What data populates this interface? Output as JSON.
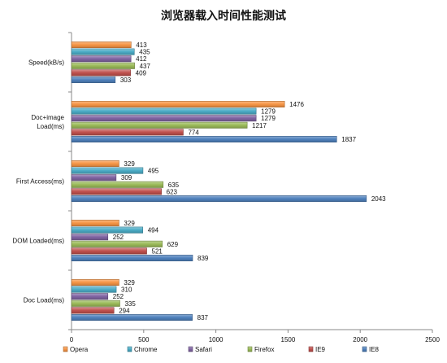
{
  "chart_data": {
    "type": "bar",
    "orientation": "horizontal",
    "title": "浏览器载入时间性能测试",
    "categories": [
      "Speed(kB/s)",
      "Doc+image Load(ms)",
      "First Access(ms)",
      "DOM Loaded(ms)",
      "Doc Load(ms)"
    ],
    "category_lines": [
      [
        "Speed(kB/s)"
      ],
      [
        "Doc+image",
        "Load(ms)"
      ],
      [
        "First Access(ms)"
      ],
      [
        "DOM Loaded(ms)"
      ],
      [
        "Doc Load(ms)"
      ]
    ],
    "series": [
      {
        "name": "Opera",
        "color": "#F79646",
        "values": [
          413,
          1476,
          329,
          329,
          329
        ]
      },
      {
        "name": "Chrome",
        "color": "#4BACC6",
        "values": [
          435,
          1279,
          495,
          494,
          310
        ]
      },
      {
        "name": "Safari",
        "color": "#8064A2",
        "values": [
          412,
          1279,
          309,
          252,
          252
        ]
      },
      {
        "name": "Firefox",
        "color": "#9BBB59",
        "values": [
          437,
          1217,
          635,
          629,
          335
        ]
      },
      {
        "name": "IE9",
        "color": "#C0504D",
        "values": [
          409,
          774,
          623,
          521,
          294
        ]
      },
      {
        "name": "IE8",
        "color": "#4F81BD",
        "values": [
          303,
          1837,
          2043,
          839,
          837
        ]
      }
    ],
    "xlim": [
      0,
      2500
    ],
    "xticks": [
      0,
      500,
      1000,
      1500,
      2000,
      2500
    ],
    "grid": false,
    "legend_position": "bottom"
  }
}
